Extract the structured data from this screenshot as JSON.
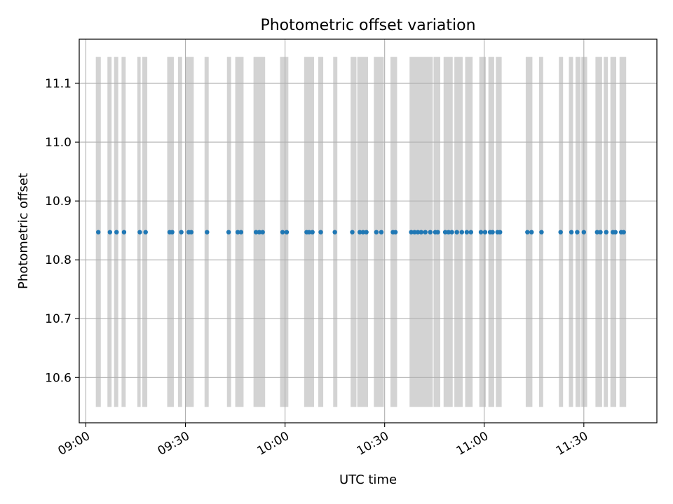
{
  "chart_data": {
    "type": "scatter",
    "title": "Photometric offset variation",
    "xlabel": "UTC time",
    "ylabel": "Photometric offset",
    "x_type": "time",
    "xlim": [
      "08:58",
      "11:52"
    ],
    "ylim": [
      10.523,
      11.175
    ],
    "x_ticks": [
      "09:00",
      "09:30",
      "10:00",
      "10:30",
      "11:00",
      "11:30"
    ],
    "y_ticks": [
      10.6,
      10.7,
      10.8,
      10.9,
      11.0,
      11.1
    ],
    "grid": true,
    "legend": "none",
    "colors": {
      "points": "#1f77b4",
      "bands": "#d3d3d3",
      "grid": "#b0b0b0",
      "axes": "#000000"
    },
    "band_range": [
      10.55,
      11.145
    ],
    "bands": [
      [
        "09:03:00",
        "09:04:30"
      ],
      [
        "09:06:30",
        "09:07:45"
      ],
      [
        "09:08:30",
        "09:09:45"
      ],
      [
        "09:10:45",
        "09:12:00"
      ],
      [
        "09:15:30",
        "09:16:30"
      ],
      [
        "09:17:00",
        "09:18:30"
      ],
      [
        "09:24:30",
        "09:26:30"
      ],
      [
        "09:27:45",
        "09:29:00"
      ],
      [
        "09:30:00",
        "09:32:30"
      ],
      [
        "09:35:45",
        "09:37:00"
      ],
      [
        "09:42:30",
        "09:43:45"
      ],
      [
        "09:45:00",
        "09:47:30"
      ],
      [
        "09:50:30",
        "09:54:00"
      ],
      [
        "09:58:30",
        "10:01:00"
      ],
      [
        "10:05:45",
        "10:08:45"
      ],
      [
        "10:10:00",
        "10:11:30"
      ],
      [
        "10:14:30",
        "10:15:45"
      ],
      [
        "10:19:45",
        "10:21:30"
      ],
      [
        "10:21:45",
        "10:25:00"
      ],
      [
        "10:26:45",
        "10:29:45"
      ],
      [
        "10:31:45",
        "10:33:45"
      ],
      [
        "10:37:30",
        "10:44:30"
      ],
      [
        "10:44:45",
        "10:46:45"
      ],
      [
        "10:47:45",
        "10:50:30"
      ],
      [
        "10:51:00",
        "10:53:30"
      ],
      [
        "10:54:15",
        "10:56:30"
      ],
      [
        "10:58:30",
        "11:00:30"
      ],
      [
        "11:01:15",
        "11:03:00"
      ],
      [
        "11:03:30",
        "11:05:15"
      ],
      [
        "11:12:30",
        "11:14:30"
      ],
      [
        "11:16:30",
        "11:17:45"
      ],
      [
        "11:22:30",
        "11:23:45"
      ],
      [
        "11:25:30",
        "11:26:45"
      ],
      [
        "11:27:30",
        "11:29:00"
      ],
      [
        "11:29:15",
        "11:31:00"
      ],
      [
        "11:33:30",
        "11:35:30"
      ],
      [
        "11:36:00",
        "11:37:15"
      ],
      [
        "11:38:00",
        "11:39:45"
      ],
      [
        "11:40:45",
        "11:42:45"
      ]
    ],
    "points": {
      "y": 10.847,
      "x": [
        "09:03:45",
        "09:07:15",
        "09:09:15",
        "09:11:30",
        "09:16:15",
        "09:18:00",
        "09:25:15",
        "09:26:00",
        "09:28:45",
        "09:31:00",
        "09:31:45",
        "09:36:30",
        "09:43:00",
        "09:45:45",
        "09:46:45",
        "09:51:15",
        "09:52:15",
        "09:53:15",
        "09:59:15",
        "10:00:30",
        "10:06:30",
        "10:07:15",
        "10:08:15",
        "10:10:45",
        "10:15:00",
        "10:20:15",
        "10:22:30",
        "10:23:30",
        "10:24:30",
        "10:27:30",
        "10:29:00",
        "10:32:30",
        "10:33:15",
        "10:38:00",
        "10:39:00",
        "10:40:00",
        "10:41:00",
        "10:42:15",
        "10:43:45",
        "10:45:15",
        "10:46:00",
        "10:48:15",
        "10:49:15",
        "10:50:15",
        "10:51:45",
        "10:53:15",
        "10:54:45",
        "10:56:00",
        "10:59:00",
        "11:00:15",
        "11:01:45",
        "11:02:30",
        "11:04:00",
        "11:04:45",
        "11:13:00",
        "11:14:15",
        "11:17:15",
        "11:23:00",
        "11:26:15",
        "11:28:00",
        "11:30:00",
        "11:34:00",
        "11:35:00",
        "11:36:45",
        "11:38:45",
        "11:39:30",
        "11:41:15",
        "11:42:00"
      ]
    }
  }
}
